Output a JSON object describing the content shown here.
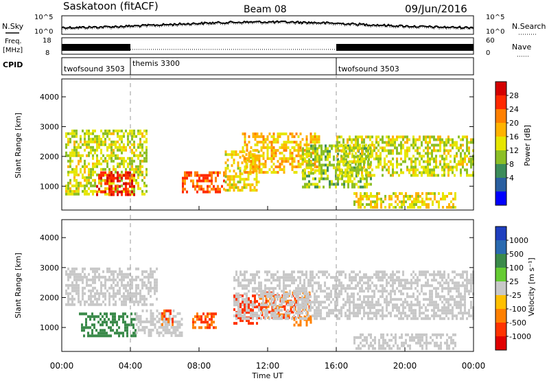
{
  "header": {
    "title": "Saskatoon (fitACF)",
    "beam": "Beam 08",
    "date": "09/Jun/2016"
  },
  "noise_panel": {
    "left_label": "N.Sky",
    "right_label": "N.Search",
    "left_ticks": [
      "10^5",
      "10^0"
    ],
    "right_ticks": [
      "10^5",
      "10^0"
    ]
  },
  "freq_panel": {
    "left_label_1": "Freq.",
    "left_label_2": "[MHz]",
    "right_label": "Nave",
    "left_ticks": [
      "18",
      "8"
    ],
    "right_ticks": [
      "60",
      "0"
    ]
  },
  "cpid_panel": {
    "label": "CPID",
    "programs": [
      {
        "name": "twofsound 3503",
        "start_hour": 0,
        "end_hour": 4
      },
      {
        "name": "themis 3300",
        "start_hour": 4,
        "end_hour": 16
      },
      {
        "name": "twofsound 3503",
        "start_hour": 16,
        "end_hour": 24
      }
    ]
  },
  "power_panel": {
    "ylabel": "Slant Range [km]",
    "colorbar_label": "Power [dB]",
    "colorbar_ticks": [
      "28",
      "24",
      "20",
      "16",
      "12",
      "8",
      "4"
    ],
    "colorbar_colors": [
      "#d40000",
      "#ff2a00",
      "#ff8000",
      "#ffb300",
      "#e6e600",
      "#8cbf26",
      "#3c8c5a",
      "#2a5fa0",
      "#0000ff"
    ]
  },
  "velocity_panel": {
    "ylabel": "Slant Range [km]",
    "colorbar_label": "Velocity [m s⁻¹]",
    "colorbar_ticks": [
      "1000",
      "500",
      "100",
      "25",
      "-25",
      "-100",
      "-500",
      "-1000"
    ],
    "colorbar_colors": [
      "#1f3fbf",
      "#2a6ab0",
      "#3a8a4a",
      "#66cc33",
      "#c8c8c8",
      "#ffc000",
      "#ff8000",
      "#ff3300",
      "#e00000"
    ]
  },
  "xaxis": {
    "label": "Time UT",
    "ticks": [
      "00:00",
      "04:00",
      "08:00",
      "12:00",
      "16:00",
      "20:00",
      "00:00"
    ]
  },
  "chart_data": [
    {
      "type": "heatmap",
      "title": "Saskatoon (fitACF) Beam 08 09/Jun/2016",
      "quantity": "Power [dB]",
      "xlabel": "Time UT",
      "ylabel": "Slant Range [km]",
      "x_ticks": [
        "00:00",
        "04:00",
        "08:00",
        "12:00",
        "16:00",
        "20:00",
        "00:00"
      ],
      "y_ticks": [
        1000,
        2000,
        3000,
        4000
      ],
      "ylim": [
        200,
        4600
      ],
      "xlim_hours": [
        0,
        24
      ],
      "colorbar_ticks": [
        4,
        8,
        12,
        16,
        20,
        24,
        28
      ],
      "colorbar_range": [
        0,
        30
      ],
      "echo_regions": [
        {
          "t_start": 0.2,
          "t_end": 5.0,
          "range_start": 700,
          "range_end": 2900,
          "power_db": 14
        },
        {
          "t_start": 2.0,
          "t_end": 4.2,
          "range_start": 700,
          "range_end": 1500,
          "power_db": 27
        },
        {
          "t_start": 7.0,
          "t_end": 9.5,
          "range_start": 800,
          "range_end": 1500,
          "power_db": 24
        },
        {
          "t_start": 9.5,
          "t_end": 11.5,
          "range_start": 900,
          "range_end": 2200,
          "power_db": 16
        },
        {
          "t_start": 10.5,
          "t_end": 15.0,
          "range_start": 1500,
          "range_end": 2800,
          "power_db": 18
        },
        {
          "t_start": 14.0,
          "t_end": 18.0,
          "range_start": 1000,
          "range_end": 2400,
          "power_db": 12
        },
        {
          "t_start": 16.0,
          "t_end": 24.0,
          "range_start": 1400,
          "range_end": 2700,
          "power_db": 14
        },
        {
          "t_start": 17.0,
          "t_end": 23.0,
          "range_start": 250,
          "range_end": 800,
          "power_db": 16
        }
      ]
    },
    {
      "type": "heatmap",
      "title": "Saskatoon (fitACF) Beam 08 09/Jun/2016",
      "quantity": "Velocity [m s⁻¹]",
      "xlabel": "Time UT",
      "ylabel": "Slant Range [km]",
      "x_ticks": [
        "00:00",
        "04:00",
        "08:00",
        "12:00",
        "16:00",
        "20:00",
        "00:00"
      ],
      "y_ticks": [
        1000,
        2000,
        3000,
        4000
      ],
      "ylim": [
        200,
        4600
      ],
      "xlim_hours": [
        0,
        24
      ],
      "colorbar_ticks": [
        1000,
        500,
        100,
        25,
        -25,
        -100,
        -500,
        -1000
      ],
      "echo_regions": [
        {
          "t_start": 0.2,
          "t_end": 5.5,
          "range_start": 1800,
          "range_end": 3000,
          "velocity": 0
        },
        {
          "t_start": 1.0,
          "t_end": 4.3,
          "range_start": 700,
          "range_end": 1500,
          "velocity": 150
        },
        {
          "t_start": 4.3,
          "t_end": 7.0,
          "range_start": 700,
          "range_end": 1600,
          "velocity": 0
        },
        {
          "t_start": 5.8,
          "t_end": 6.5,
          "range_start": 1100,
          "range_end": 1600,
          "velocity": -300
        },
        {
          "t_start": 7.6,
          "t_end": 9.0,
          "range_start": 1000,
          "range_end": 1500,
          "velocity": -300
        },
        {
          "t_start": 10.0,
          "t_end": 11.5,
          "range_start": 1100,
          "range_end": 2100,
          "velocity": -400
        },
        {
          "t_start": 11.5,
          "t_end": 14.5,
          "range_start": 1300,
          "range_end": 2200,
          "velocity": -300
        },
        {
          "t_start": 13.5,
          "t_end": 14.5,
          "range_start": 1100,
          "range_end": 1400,
          "velocity": -80
        },
        {
          "t_start": 10.0,
          "t_end": 24.0,
          "range_start": 1300,
          "range_end": 2900,
          "velocity": 0
        },
        {
          "t_start": 17.0,
          "t_end": 23.0,
          "range_start": 250,
          "range_end": 800,
          "velocity": 0
        }
      ]
    }
  ]
}
